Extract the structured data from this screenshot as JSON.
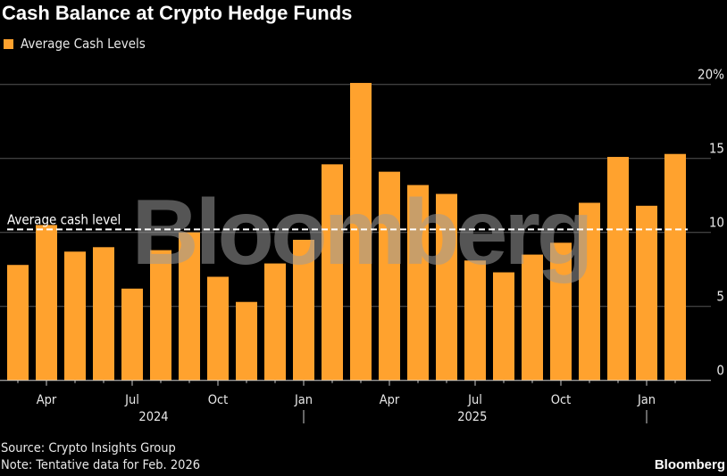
{
  "chart_data": {
    "type": "bar",
    "title": "Cash Balance at Crypto Hedge Funds",
    "legend": [
      {
        "name": "Average Cash Levels",
        "color": "#ffa22e"
      }
    ],
    "categories": [
      "Mar 2024",
      "Apr 2024",
      "May 2024",
      "Jun 2024",
      "Jul 2024",
      "Aug 2024",
      "Sep 2024",
      "Oct 2024",
      "Nov 2024",
      "Dec 2024",
      "Jan 2025",
      "Feb 2025",
      "Mar 2025",
      "Apr 2025",
      "May 2025",
      "Jun 2025",
      "Jul 2025",
      "Aug 2025",
      "Sep 2025",
      "Oct 2025",
      "Nov 2025",
      "Dec 2025",
      "Jan 2026",
      "Feb 2026"
    ],
    "series": [
      {
        "name": "Average Cash Levels",
        "values": [
          7.8,
          10.5,
          8.7,
          9.0,
          6.2,
          8.8,
          10.0,
          7.0,
          5.3,
          7.9,
          9.5,
          14.6,
          20.1,
          14.1,
          13.2,
          12.6,
          8.1,
          7.3,
          8.5,
          9.3,
          12.0,
          15.1,
          11.8,
          15.3
        ]
      }
    ],
    "ylim": [
      0,
      20
    ],
    "y_ticks": [
      {
        "value": 0,
        "label": "0"
      },
      {
        "value": 5,
        "label": "5"
      },
      {
        "value": 10,
        "label": "10"
      },
      {
        "value": 15,
        "label": "15"
      },
      {
        "value": 20,
        "label": "20%"
      }
    ],
    "x_tick_labels": [
      {
        "index": 1,
        "label": "Apr"
      },
      {
        "index": 4,
        "label": "Jul"
      },
      {
        "index": 7,
        "label": "Oct"
      },
      {
        "index": 10,
        "label": "Jan"
      },
      {
        "index": 13,
        "label": "Apr"
      },
      {
        "index": 16,
        "label": "Jul"
      },
      {
        "index": 19,
        "label": "Oct"
      },
      {
        "index": 22,
        "label": "Jan"
      }
    ],
    "year_labels": [
      {
        "label": "2024",
        "center_index": 4.75
      },
      {
        "label": "2025",
        "center_index": 15.9
      }
    ],
    "year_boundaries": [
      10,
      22
    ],
    "reference_line": {
      "label": "Average cash level",
      "value": 10.2,
      "style": "dashed",
      "color": "#ffffff"
    },
    "grid": true,
    "legend_position": "top-left",
    "axis_position": "right"
  },
  "source": "Source: Crypto Insights Group",
  "note": "Note: Tentative data for Feb. 2026",
  "brand": "Bloomberg",
  "watermark": "Bloomberg"
}
